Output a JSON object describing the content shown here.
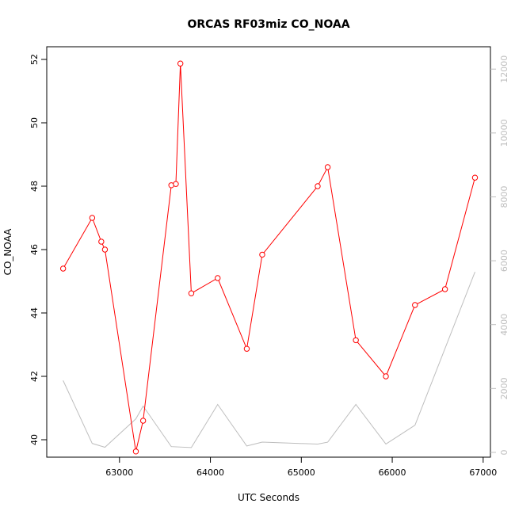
{
  "chart_data": {
    "type": "line",
    "title": "ORCAS RF03miz CO_NOAA",
    "xlabel": "UTC Seconds",
    "ylabel": "CO_NOAA",
    "xlim": [
      62200,
      67080
    ],
    "ylim": [
      39.45,
      52.4
    ],
    "y2lim": [
      -150,
      12700
    ],
    "xticks": [
      63000,
      64000,
      65000,
      66000,
      67000
    ],
    "yticks": [
      40,
      42,
      44,
      46,
      48,
      50,
      52
    ],
    "y2ticks": [
      0,
      2000,
      4000,
      6000,
      8000,
      10000,
      12000
    ],
    "colors": {
      "primary": "#ff0000",
      "secondary": "#bebebe"
    },
    "series": [
      {
        "x": [
          62380,
          62700,
          62800,
          62840,
          63180,
          63260,
          63570,
          63620,
          63670,
          63790,
          64080,
          64400,
          64570,
          65180,
          65290,
          65600,
          65930,
          66250,
          66580,
          66910
        ],
        "y": [
          45.4,
          47.0,
          46.25,
          46.0,
          39.63,
          40.6,
          48.03,
          48.07,
          51.87,
          44.62,
          45.1,
          42.87,
          45.84,
          48.0,
          48.6,
          43.14,
          42.0,
          44.25,
          44.75,
          48.27
        ]
      },
      {
        "x": [
          62380,
          62700,
          62840,
          63180,
          63260,
          63570,
          63790,
          64080,
          64400,
          64570,
          65180,
          65290,
          65600,
          65930,
          66250,
          66910
        ],
        "y": [
          2250,
          280,
          160,
          1050,
          1450,
          180,
          150,
          1500,
          200,
          320,
          260,
          320,
          1500,
          260,
          850,
          5650
        ]
      }
    ]
  }
}
